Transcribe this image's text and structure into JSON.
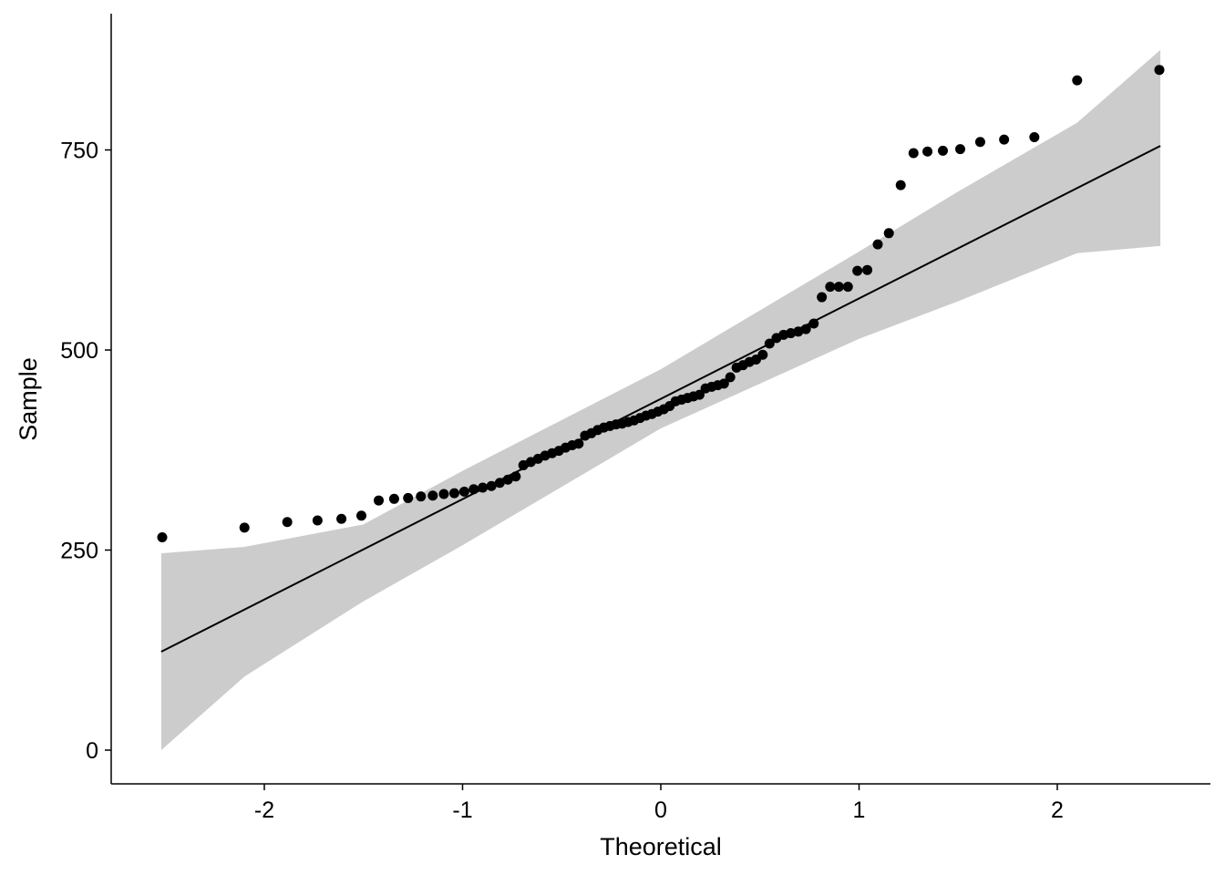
{
  "chart_data": {
    "type": "scatter",
    "subtype": "qq-plot",
    "title": "",
    "xlabel": "Theoretical",
    "ylabel": "Sample",
    "xlim": [
      -2.75,
      2.8
    ],
    "ylim": [
      -85,
      925
    ],
    "x_ticks": [
      -2,
      -1,
      0,
      1,
      2
    ],
    "x_tick_labels": [
      "-2",
      "-1",
      "0",
      "1",
      "2"
    ],
    "y_ticks": [
      0,
      250,
      500,
      750
    ],
    "y_tick_labels": [
      "0",
      "250",
      "500",
      "750"
    ],
    "grid": false,
    "n": 84,
    "sample": [
      266,
      278,
      285,
      287,
      289,
      293,
      312,
      314,
      315,
      317,
      318,
      320,
      321,
      323,
      326,
      328,
      330,
      334,
      338,
      342,
      356,
      360,
      364,
      368,
      371,
      374,
      378,
      381,
      383,
      393,
      396,
      400,
      403,
      405,
      407,
      408,
      410,
      412,
      415,
      418,
      420,
      423,
      426,
      430,
      436,
      438,
      440,
      442,
      444,
      452,
      454,
      456,
      458,
      466,
      478,
      481,
      485,
      488,
      494,
      508,
      515,
      519,
      521,
      523,
      526,
      533,
      566,
      579,
      579,
      579,
      599,
      600,
      632,
      646,
      706,
      746,
      748,
      749,
      751,
      760,
      763,
      766,
      837,
      850
    ],
    "reference_line": {
      "intercept": 439,
      "slope": 125.4
    },
    "confidence_band": {
      "x": [
        -2.52,
        -2.1,
        -1.5,
        -1.0,
        0.0,
        1.0,
        1.5,
        2.1,
        2.52
      ],
      "upper": [
        246,
        254,
        282,
        349,
        476,
        623,
        698,
        784,
        875
      ],
      "lower": [
        0,
        92,
        186,
        256,
        402,
        514,
        561,
        621,
        630
      ]
    },
    "colors": {
      "points": "#000000",
      "band": "#cccccc",
      "line": "#000000"
    }
  }
}
